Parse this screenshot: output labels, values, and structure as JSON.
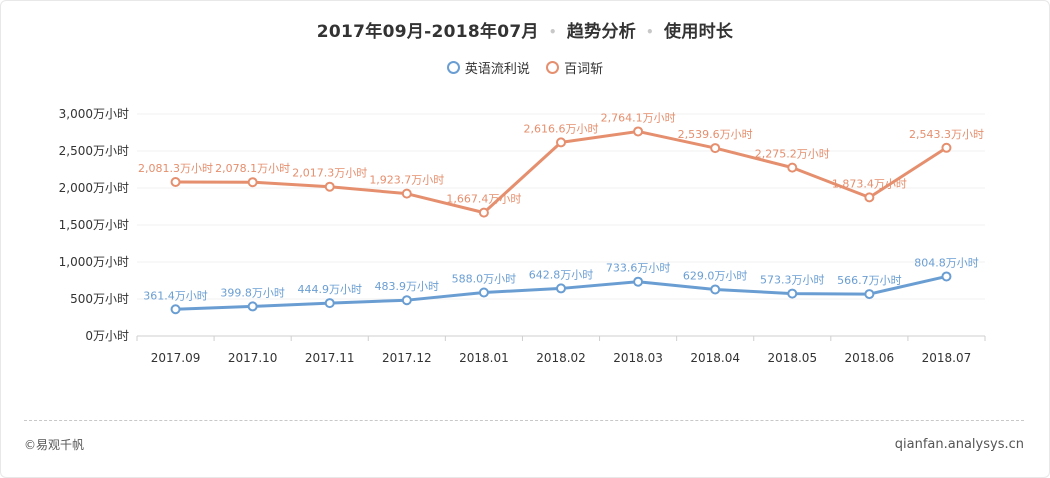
{
  "chart_data": {
    "type": "line",
    "title": "2017年09月-2018年07月",
    "title_parts": [
      "2017年09月-2018年07月",
      "趋势分析",
      "使用时长"
    ],
    "title_separator": "•",
    "categories": [
      "2017.09",
      "2017.10",
      "2017.11",
      "2017.12",
      "2018.01",
      "2018.02",
      "2018.03",
      "2018.04",
      "2018.05",
      "2018.06",
      "2018.07"
    ],
    "series": [
      {
        "name": "英语流利说",
        "color": "#6a9ed3",
        "values": [
          361.4,
          399.8,
          444.9,
          483.9,
          588.0,
          642.8,
          733.6,
          629.0,
          573.3,
          566.7,
          804.8
        ],
        "labels": [
          "361.4万小时",
          "399.8万小时",
          "444.9万小时",
          "483.9万小时",
          "588.0万小时",
          "642.8万小时",
          "733.6万小时",
          "629.0万小时",
          "573.3万小时",
          "566.7万小时",
          "804.8万小时"
        ]
      },
      {
        "name": "百词斩",
        "color": "#e58f6e",
        "values": [
          2081.3,
          2078.1,
          2017.3,
          1923.7,
          1667.4,
          2616.6,
          2764.1,
          2539.6,
          2275.2,
          1873.4,
          2543.3
        ],
        "labels": [
          "2,081.3万小时",
          "2,078.1万小时",
          "2,017.3万小时",
          "1,923.7万小时",
          "1,667.4万小时",
          "2,616.6万小时",
          "2,764.1万小时",
          "2,539.6万小时",
          "2,275.2万小时",
          "1,873.4万小时",
          "2,543.3万小时"
        ]
      }
    ],
    "ylim": [
      0,
      3000
    ],
    "yticks": [
      0,
      500,
      1000,
      1500,
      2000,
      2500,
      3000
    ],
    "ytick_labels": [
      "0万小时",
      "500万小时",
      "1,000万小时",
      "1,500万小时",
      "2,000万小时",
      "2,500万小时",
      "3,000万小时"
    ],
    "xlabel": "",
    "ylabel": "",
    "legend_position": "top-center",
    "grid": true
  },
  "footer": {
    "source": "©易观千帆",
    "url": "qianfan.analysys.cn"
  }
}
